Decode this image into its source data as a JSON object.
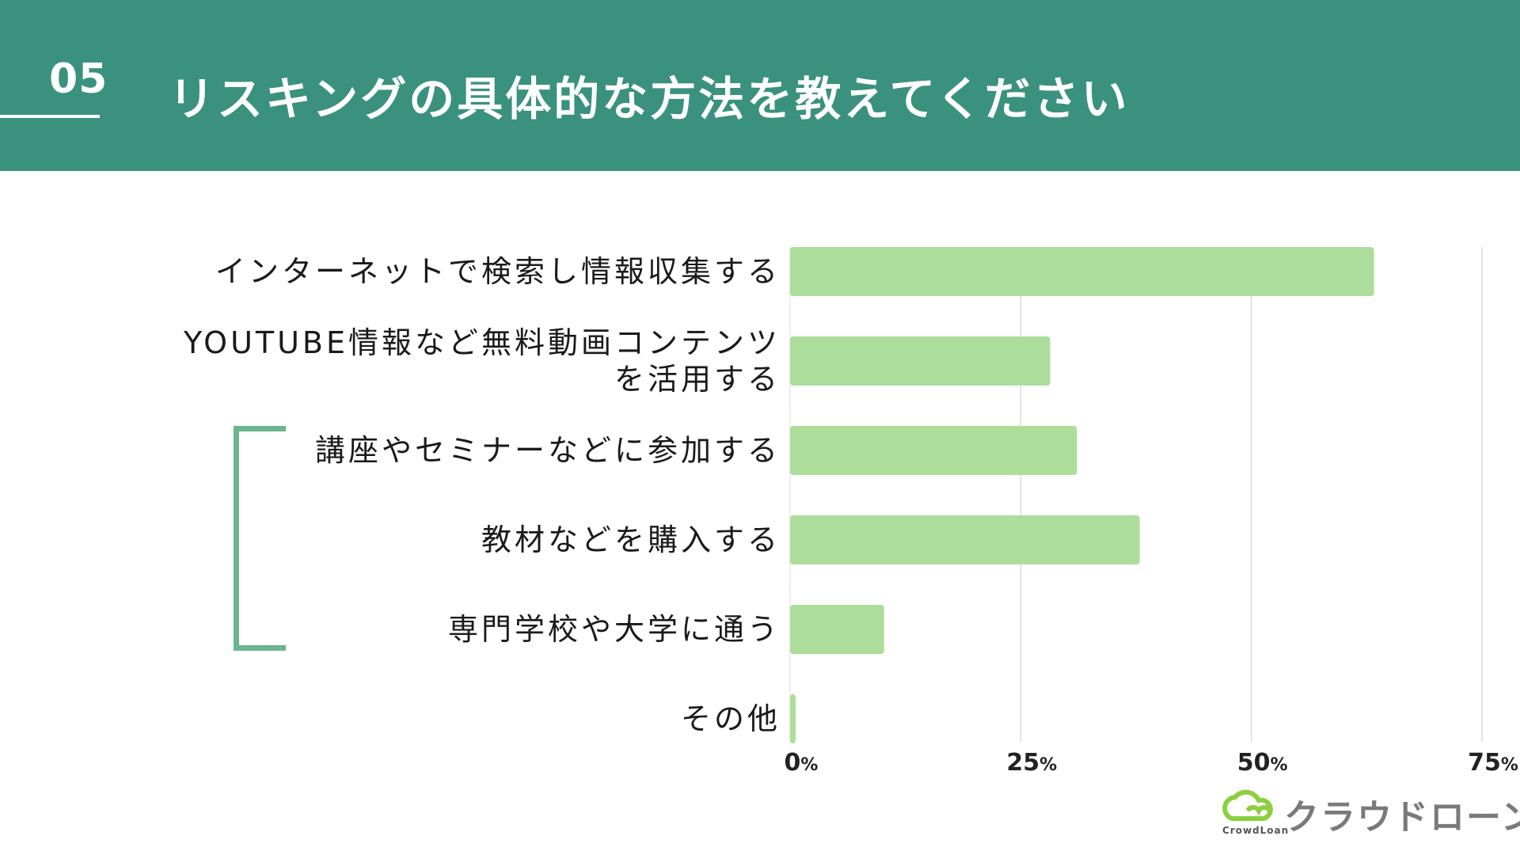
{
  "header": {
    "number": "05",
    "title": "リスキングの具体的な方法を教えてください"
  },
  "chart_data": {
    "type": "bar",
    "orientation": "horizontal",
    "title": "リスキングの具体的な方法を教えてください",
    "categories": [
      [
        "インターネットで検索し情報収集する"
      ],
      [
        "YOUTUBE情報など無料動画コンテンツ",
        "を活用する"
      ],
      [
        "講座やセミナーなどに参加する"
      ],
      [
        "教材などを購入する"
      ],
      [
        "専門学校や大学に通う"
      ],
      [
        "その他"
      ]
    ],
    "values": [
      63.3,
      28.2,
      31.1,
      37.9,
      10.2,
      0.6
    ],
    "xlim": [
      0,
      75
    ],
    "xticks": [
      {
        "value": 0,
        "label": "0",
        "unit": "%"
      },
      {
        "value": 25,
        "label": "25",
        "unit": "%"
      },
      {
        "value": 50,
        "label": "50",
        "unit": "%"
      },
      {
        "value": 75,
        "label": "75",
        "unit": "%"
      }
    ],
    "grid": true,
    "bar_color": "#addd9b",
    "grid_color": "#dcdcdc"
  },
  "colors": {
    "header": "#3a917e",
    "bracket": "#6ab48f",
    "logo_green": "#8ccf3f",
    "logo_gray": "#7a7a7a"
  },
  "logo": {
    "text": "クラウドローン",
    "sub": "CrowdLoan",
    "icon": "cloud-logo-icon"
  }
}
